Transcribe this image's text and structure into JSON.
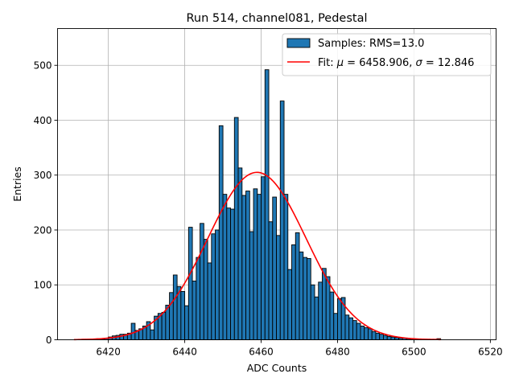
{
  "chart_data": {
    "type": "bar",
    "title": "Run 514, channel081, Pedestal",
    "xlabel": "ADC Counts",
    "ylabel": "Entries",
    "xlim": [
      6406.7,
      6521.5
    ],
    "ylim": [
      0,
      567
    ],
    "xticks": [
      6420,
      6440,
      6460,
      6480,
      6500,
      6520
    ],
    "yticks": [
      0,
      100,
      200,
      300,
      400,
      500
    ],
    "grid": true,
    "legend_position": "top-right",
    "series": [
      {
        "name": "Samples: RMS=13.0",
        "type": "histogram",
        "bin_width": 1,
        "x": [
          6413,
          6414,
          6415,
          6416,
          6417,
          6418,
          6419,
          6420,
          6421,
          6422,
          6423,
          6424,
          6425,
          6426,
          6427,
          6428,
          6429,
          6430,
          6431,
          6432,
          6433,
          6434,
          6435,
          6436,
          6437,
          6438,
          6439,
          6440,
          6441,
          6442,
          6443,
          6444,
          6445,
          6446,
          6447,
          6448,
          6449,
          6450,
          6451,
          6452,
          6453,
          6454,
          6455,
          6456,
          6457,
          6458,
          6459,
          6460,
          6461,
          6462,
          6463,
          6464,
          6465,
          6466,
          6467,
          6468,
          6469,
          6470,
          6471,
          6472,
          6473,
          6474,
          6475,
          6476,
          6477,
          6478,
          6479,
          6480,
          6481,
          6482,
          6483,
          6484,
          6485,
          6486,
          6487,
          6488,
          6489,
          6490,
          6491,
          6492,
          6493,
          6494,
          6495,
          6496,
          6497,
          6498,
          6499,
          6500,
          6501,
          6502,
          6503,
          6504,
          6505,
          6506
        ],
        "values": [
          1,
          1,
          1,
          1,
          2,
          2,
          3,
          5,
          7,
          8,
          10,
          10,
          12,
          30,
          17,
          20,
          25,
          33,
          18,
          43,
          48,
          50,
          63,
          86,
          118,
          97,
          88,
          62,
          205,
          107,
          150,
          212,
          183,
          140,
          193,
          200,
          390,
          265,
          240,
          238,
          405,
          313,
          263,
          271,
          197,
          275,
          265,
          297,
          492,
          215,
          260,
          190,
          435,
          265,
          128,
          173,
          195,
          160,
          150,
          148,
          100,
          78,
          105,
          130,
          115,
          87,
          48,
          75,
          77,
          45,
          40,
          35,
          30,
          25,
          22,
          20,
          15,
          12,
          10,
          8,
          6,
          5,
          4,
          3,
          3,
          2,
          2,
          1,
          1,
          1,
          1,
          1,
          1,
          2
        ]
      },
      {
        "name": "Fit: μ = 6458.906, σ = 12.846",
        "type": "gaussian_fit",
        "mu": 6458.906,
        "sigma": 12.846,
        "amplitude": 305,
        "x_range": [
          6411,
          6507
        ],
        "color": "#ff0000"
      }
    ]
  },
  "legend": {
    "samples_label": "Samples: RMS=13.0",
    "fit_label_prefix": "Fit: ",
    "fit_mu_symbol": "μ",
    "fit_mu_text": " = 6458.906, ",
    "fit_sigma_symbol": "σ",
    "fit_sigma_text": " = 12.846"
  },
  "colors": {
    "bar_fill": "#1f77b4",
    "bar_edge": "#000000",
    "fit_line": "#ff0000",
    "grid": "#b0b0b0"
  }
}
